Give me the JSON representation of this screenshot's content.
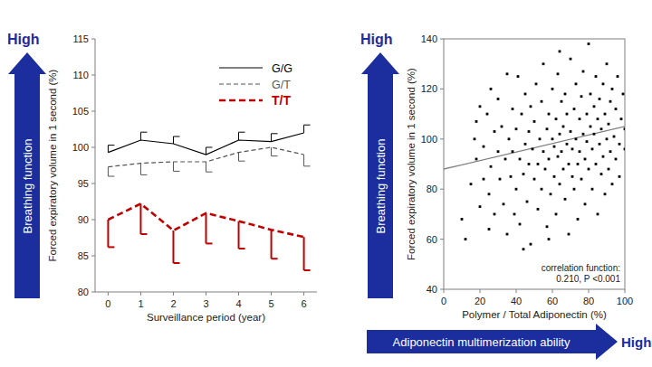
{
  "chart_data": [
    {
      "type": "line",
      "x_label": "Surveillance period (year)",
      "y_label": "Forced expiratory volume in 1 second (%)",
      "arrow_labels": {
        "y_high": "High",
        "y_arrow": "Breathing function"
      },
      "x": [
        0,
        1,
        2,
        3,
        4,
        5,
        6
      ],
      "xlim": [
        -0.4,
        6.4
      ],
      "xticks": [
        0,
        1,
        2,
        3,
        4,
        5,
        6
      ],
      "ylim": [
        80,
        115
      ],
      "yticks": [
        80,
        85,
        90,
        95,
        100,
        105,
        110,
        115
      ],
      "grid": false,
      "legend": "top-right",
      "series": [
        {
          "name": "G/G",
          "color": "#000000",
          "line_style": "solid",
          "values": [
            99.3,
            101,
            100.5,
            99,
            101,
            100.8,
            102
          ],
          "error": [
            1,
            1.1,
            1,
            1,
            1.1,
            1.1,
            1.1
          ]
        },
        {
          "name": "G/T",
          "color": "#555555",
          "line_style": "dashed",
          "values": [
            97.3,
            97.8,
            98,
            98,
            99.3,
            100,
            99
          ],
          "error": [
            1.3,
            1.6,
            1.3,
            1.4,
            1.2,
            1.2,
            1.6
          ]
        },
        {
          "name": "T/T",
          "color": "#c00000",
          "line_style": "dashed",
          "values": [
            90,
            92.2,
            88.5,
            90.9,
            89.8,
            88.6,
            87.6
          ],
          "error": [
            3.8,
            4.2,
            4.5,
            4.2,
            3.8,
            4,
            4.6
          ]
        }
      ]
    },
    {
      "type": "scatter",
      "x_label": "Polymer / Total Adiponectin (%)",
      "y_label": "Forced expiratory volume in 1 second (%)",
      "arrow_labels": {
        "y_high": "High",
        "y_arrow": "Breathing function",
        "x_arrow": "Adiponectin multimerization ability",
        "x_high": "High"
      },
      "annotations": [
        "correlation function:",
        "0.210, P <0.001"
      ],
      "xlim": [
        0,
        100
      ],
      "xticks": [
        0,
        20,
        40,
        60,
        80,
        100
      ],
      "ylim": [
        40,
        140
      ],
      "yticks": [
        40,
        60,
        80,
        100,
        120,
        140
      ],
      "grid": false,
      "color": "#000000",
      "marker": "square",
      "trend_line": {
        "x": [
          0,
          100
        ],
        "values": [
          88,
          105
        ],
        "color": "#808080"
      },
      "x": [
        10,
        12,
        15,
        17,
        18,
        20,
        20,
        22,
        22,
        24,
        25,
        25,
        26,
        28,
        28,
        30,
        30,
        31,
        32,
        33,
        34,
        35,
        35,
        36,
        37,
        38,
        38,
        39,
        40,
        40,
        41,
        42,
        42,
        43,
        44,
        45,
        45,
        46,
        47,
        47,
        48,
        48,
        49,
        50,
        50,
        51,
        52,
        52,
        53,
        54,
        54,
        55,
        55,
        56,
        57,
        57,
        58,
        58,
        59,
        60,
        60,
        61,
        61,
        62,
        62,
        63,
        63,
        64,
        64,
        65,
        65,
        66,
        66,
        67,
        67,
        68,
        68,
        69,
        69,
        70,
        70,
        71,
        71,
        72,
        72,
        73,
        73,
        74,
        74,
        75,
        75,
        76,
        76,
        77,
        77,
        78,
        78,
        79,
        79,
        80,
        80,
        81,
        81,
        82,
        82,
        83,
        83,
        84,
        84,
        85,
        85,
        86,
        86,
        87,
        87,
        88,
        88,
        89,
        89,
        90,
        90,
        91,
        91,
        92,
        92,
        93,
        93,
        94,
        95,
        95,
        96,
        97,
        97,
        98,
        99,
        100,
        100,
        64,
        44,
        58,
        26,
        18
      ],
      "values": [
        68,
        60,
        82,
        100,
        92,
        113,
        73,
        84,
        97,
        110,
        64,
        78,
        89,
        103,
        70,
        95,
        116,
        84,
        105,
        74,
        92,
        126,
        62,
        100,
        85,
        112,
        95,
        70,
        80,
        104,
        125,
        92,
        66,
        110,
        86,
        98,
        118,
        75,
        103,
        90,
        58,
        113,
        96,
        84,
        107,
        122,
        90,
        72,
        100,
        115,
        80,
        95,
        130,
        88,
        104,
        65,
        110,
        92,
        78,
        100,
        120,
        85,
        97,
        108,
        70,
        93,
        126,
        102,
        82,
        115,
        95,
        88,
        105,
        76,
        118,
        98,
        110,
        62,
        90,
        132,
        103,
        85,
        96,
        112,
        80,
        100,
        122,
        90,
        68,
        108,
        95,
        117,
        84,
        102,
        127,
        92,
        74,
        110,
        99,
        138,
        88,
        105,
        118,
        80,
        96,
        113,
        102,
        90,
        125,
        70,
        108,
        98,
        116,
        86,
        104,
        122,
        93,
        78,
        110,
        100,
        130,
        88,
        106,
        115,
        95,
        82,
        120,
        101,
        92,
        112,
        125,
        98,
        85,
        108,
        118,
        96,
        104,
        135,
        56,
        60,
        120,
        107
      ]
    }
  ]
}
